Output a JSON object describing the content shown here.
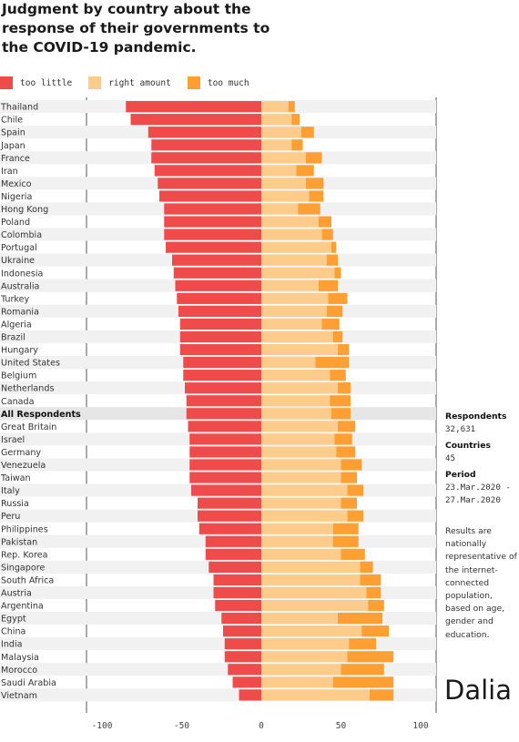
{
  "title": "Judgment by country about the response of their governments to the COVID-19 pandemic.",
  "legend": [
    {
      "label": "too little",
      "color": "#ef4b4b"
    },
    {
      "label": "right amount",
      "color": "#fdcc8a"
    },
    {
      "label": "too much",
      "color": "#fe9f33"
    }
  ],
  "side": {
    "respondents_label": "Respondents",
    "respondents_value": "32,631",
    "countries_label": "Countries",
    "countries_value": "45",
    "period_label": "Period",
    "period_start": "23.Mar.2020 -",
    "period_end": "27.Mar.2020",
    "note": "Results are nationally representative of the internet-connected population, based on age, gender and education."
  },
  "logo_text": "Dalia",
  "chart_data": {
    "type": "bar",
    "orientation": "horizontal",
    "stacked": true,
    "xlim": [
      -110,
      110
    ],
    "xticks": [
      -100,
      -50,
      0,
      50,
      100
    ],
    "grid": false,
    "legend_position": "top",
    "categories": [
      "Thailand",
      "Chile",
      "Spain",
      "Japan",
      "France",
      "Iran",
      "Mexico",
      "Nigeria",
      "Hong Kong",
      "Poland",
      "Colombia",
      "Portugal",
      "Ukraine",
      "Indonesia",
      "Australia",
      "Turkey",
      "Romania",
      "Algeria",
      "Brazil",
      "Hungary",
      "United States",
      "Belgium",
      "Netherlands",
      "Canada",
      "All Respondents",
      "Great Britain",
      "Israel",
      "Germany",
      "Venezuela",
      "Taiwan",
      "Italy",
      "Russia",
      "Peru",
      "Philippines",
      "Pakistan",
      "Rep. Korea",
      "Singapore",
      "South Africa",
      "Austria",
      "Argentina",
      "Egypt",
      "China",
      "India",
      "Malaysia",
      "Morocco",
      "Saudi Arabia",
      "Vietnam"
    ],
    "highlight": "All Respondents",
    "series": [
      {
        "name": "too little",
        "color": "#ef4b4b",
        "values": [
          -85,
          -82,
          -71,
          -69,
          -69,
          -67,
          -65,
          -64,
          -61,
          -61,
          -61,
          -60,
          -56,
          -55,
          -54,
          -53,
          -52,
          -51,
          -51,
          -51,
          -49,
          -49,
          -48,
          -47,
          -47,
          -46,
          -45,
          -45,
          -45,
          -45,
          -44,
          -40,
          -40,
          -39,
          -35,
          -35,
          -33,
          -30,
          -30,
          -29,
          -25,
          -24,
          -23,
          -23,
          -21,
          -18,
          -14
        ]
      },
      {
        "name": "right amount",
        "color": "#fdcc8a",
        "values": [
          17,
          19,
          25,
          19,
          28,
          22,
          28,
          30,
          23,
          36,
          38,
          44,
          41,
          46,
          36,
          42,
          41,
          38,
          45,
          48,
          34,
          43,
          48,
          43,
          44,
          48,
          46,
          47,
          50,
          50,
          54,
          50,
          54,
          45,
          45,
          50,
          62,
          62,
          66,
          67,
          48,
          63,
          55,
          54,
          50,
          45,
          68
        ]
      },
      {
        "name": "too much",
        "color": "#fe9f33",
        "values": [
          4,
          5,
          8,
          7,
          10,
          11,
          11,
          9,
          14,
          8,
          7,
          3,
          7,
          4,
          12,
          12,
          10,
          11,
          6,
          7,
          21,
          10,
          8,
          13,
          12,
          11,
          11,
          12,
          13,
          10,
          10,
          10,
          10,
          16,
          16,
          15,
          8,
          13,
          9,
          10,
          28,
          17,
          17,
          29,
          27,
          38,
          15
        ]
      }
    ]
  }
}
